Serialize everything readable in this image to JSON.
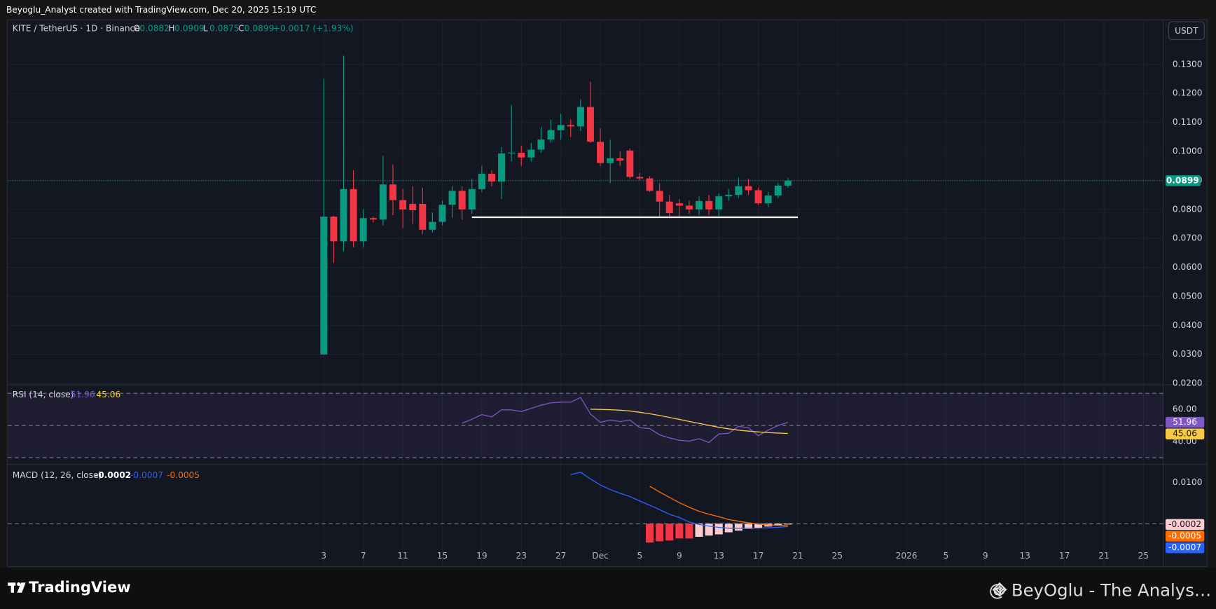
{
  "header": {
    "caption": "Beyoglu_Analyst created with TradingView.com, Dec 20, 2025 15:19 UTC"
  },
  "currency_button": "USDT",
  "footer": {
    "brand": "TradingView",
    "watermark": "@ BeyOglu - The Analys…"
  },
  "chart_data": [
    {
      "type": "candlestick",
      "title": "KITE / TetherUS · 1D · Binance",
      "ohlc_labels": [
        "O",
        "H",
        "L",
        "C"
      ],
      "change_label": "+0.0017 (+1.93%)",
      "up_color": "#089981",
      "down_color": "#f23645",
      "grid": true,
      "x": [
        "2025-11-03",
        "2025-11-04",
        "2025-11-05",
        "2025-11-06",
        "2025-11-07",
        "2025-11-08",
        "2025-11-09",
        "2025-11-10",
        "2025-11-11",
        "2025-11-12",
        "2025-11-13",
        "2025-11-14",
        "2025-11-15",
        "2025-11-16",
        "2025-11-17",
        "2025-11-18",
        "2025-11-19",
        "2025-11-20",
        "2025-11-21",
        "2025-11-22",
        "2025-11-23",
        "2025-11-24",
        "2025-11-25",
        "2025-11-26",
        "2025-11-27",
        "2025-11-28",
        "2025-11-29",
        "2025-11-30",
        "2025-12-01",
        "2025-12-02",
        "2025-12-03",
        "2025-12-04",
        "2025-12-05",
        "2025-12-06",
        "2025-12-07",
        "2025-12-08",
        "2025-12-09",
        "2025-12-10",
        "2025-12-11",
        "2025-12-12",
        "2025-12-13",
        "2025-12-14",
        "2025-12-15",
        "2025-12-16",
        "2025-12-17",
        "2025-12-18",
        "2025-12-19",
        "2025-12-20"
      ],
      "open": [
        0.03,
        0.0775,
        0.069,
        0.087,
        0.069,
        0.077,
        0.0765,
        0.0886,
        0.0832,
        0.0819,
        0.0819,
        0.073,
        0.0757,
        0.0816,
        0.0864,
        0.08,
        0.087,
        0.0923,
        0.0896,
        0.0993,
        0.0995,
        0.0979,
        0.1006,
        0.1041,
        0.1073,
        0.1091,
        0.1086,
        0.1153,
        0.1033,
        0.096,
        0.0976,
        0.1003,
        0.0912,
        0.0907,
        0.0864,
        0.0827,
        0.0821,
        0.0813,
        0.08,
        0.0829,
        0.08,
        0.0845,
        0.085,
        0.088,
        0.0866,
        0.0821,
        0.0848,
        0.0882
      ],
      "high": [
        0.125,
        0.0778,
        0.133,
        0.0935,
        0.08,
        0.0775,
        0.0985,
        0.0955,
        0.087,
        0.088,
        0.0875,
        0.079,
        0.083,
        0.088,
        0.088,
        0.0905,
        0.095,
        0.0935,
        0.1015,
        0.116,
        0.102,
        0.103,
        0.1085,
        0.111,
        0.113,
        0.111,
        0.118,
        0.124,
        0.108,
        0.104,
        0.1,
        0.101,
        0.0925,
        0.0915,
        0.089,
        0.085,
        0.0835,
        0.083,
        0.0845,
        0.085,
        0.0855,
        0.087,
        0.091,
        0.0905,
        0.0875,
        0.086,
        0.0892,
        0.0909
      ],
      "low": [
        0.03,
        0.0615,
        0.0655,
        0.067,
        0.067,
        0.0755,
        0.0745,
        0.078,
        0.0735,
        0.075,
        0.0715,
        0.072,
        0.0745,
        0.077,
        0.0765,
        0.0785,
        0.086,
        0.088,
        0.0835,
        0.0965,
        0.095,
        0.0965,
        0.0995,
        0.103,
        0.104,
        0.105,
        0.107,
        0.103,
        0.095,
        0.089,
        0.095,
        0.0905,
        0.09,
        0.086,
        0.0775,
        0.077,
        0.0775,
        0.0785,
        0.078,
        0.078,
        0.0778,
        0.083,
        0.084,
        0.085,
        0.0815,
        0.0808,
        0.0838,
        0.0875
      ],
      "close": [
        0.0775,
        0.069,
        0.087,
        0.069,
        0.077,
        0.0765,
        0.0886,
        0.0832,
        0.08,
        0.0797,
        0.073,
        0.0757,
        0.0816,
        0.0864,
        0.08,
        0.087,
        0.0923,
        0.0896,
        0.0993,
        0.0996,
        0.0979,
        0.1006,
        0.1041,
        0.1073,
        0.1091,
        0.1086,
        0.1153,
        0.1033,
        0.096,
        0.0976,
        0.0968,
        0.0912,
        0.0907,
        0.0864,
        0.0827,
        0.0787,
        0.0813,
        0.08,
        0.0829,
        0.08,
        0.0845,
        0.085,
        0.088,
        0.0866,
        0.0821,
        0.0848,
        0.0882,
        0.0899
      ],
      "xlim": [
        "2025-10-02",
        "2026-01-27"
      ],
      "xticks": [
        {
          "value": "2025-11-03",
          "label": "3"
        },
        {
          "value": "2025-11-07",
          "label": "7"
        },
        {
          "value": "2025-11-11",
          "label": "11"
        },
        {
          "value": "2025-11-15",
          "label": "15"
        },
        {
          "value": "2025-11-19",
          "label": "19"
        },
        {
          "value": "2025-11-23",
          "label": "23"
        },
        {
          "value": "2025-11-27",
          "label": "27"
        },
        {
          "value": "2025-12-01",
          "label": "Dec"
        },
        {
          "value": "2025-12-05",
          "label": "5"
        },
        {
          "value": "2025-12-09",
          "label": "9"
        },
        {
          "value": "2025-12-13",
          "label": "13"
        },
        {
          "value": "2025-12-17",
          "label": "17"
        },
        {
          "value": "2025-12-21",
          "label": "21"
        },
        {
          "value": "2025-12-25",
          "label": "25"
        },
        {
          "value": "2026-01-01",
          "label": "2026"
        },
        {
          "value": "2026-01-05",
          "label": "5"
        },
        {
          "value": "2026-01-09",
          "label": "9"
        },
        {
          "value": "2026-01-13",
          "label": "13"
        },
        {
          "value": "2026-01-17",
          "label": "17"
        },
        {
          "value": "2026-01-21",
          "label": "21"
        },
        {
          "value": "2026-01-25",
          "label": "25"
        }
      ],
      "ylim": [
        0.0198,
        0.1455
      ],
      "yticks": [
        {
          "value": 0.02,
          "label": "0.0200"
        },
        {
          "value": 0.03,
          "label": "0.0300"
        },
        {
          "value": 0.04,
          "label": "0.0400"
        },
        {
          "value": 0.05,
          "label": "0.0500"
        },
        {
          "value": 0.06,
          "label": "0.0600"
        },
        {
          "value": 0.07,
          "label": "0.0700"
        },
        {
          "value": 0.08,
          "label": "0.0800"
        },
        {
          "value": 0.09,
          "label": "0.0900"
        },
        {
          "value": 0.1,
          "label": "0.1000"
        },
        {
          "value": 0.11,
          "label": "0.1100"
        },
        {
          "value": 0.12,
          "label": "0.1200"
        },
        {
          "value": 0.13,
          "label": "0.1300"
        }
      ],
      "annotations": [
        {
          "type": "hline",
          "y": 0.0773,
          "x": [
            "2025-11-18",
            "2025-12-21"
          ],
          "color": "#ffffff"
        }
      ]
    },
    {
      "type": "line",
      "title": "RSI (14, close)",
      "ylim": [
        26.6,
        74.8
      ],
      "yticks": [
        {
          "value": 60,
          "label": "60.00"
        },
        {
          "value": 40,
          "label": "40.00"
        }
      ],
      "levels": [
        70,
        50,
        30
      ],
      "band_color": "#7e57c2",
      "series": [
        {
          "color": "#7e57c2",
          "values": [
            null,
            null,
            null,
            null,
            null,
            null,
            null,
            null,
            null,
            null,
            null,
            null,
            null,
            null,
            51.4,
            53.9,
            56.8,
            55.4,
            59.7,
            59.7,
            58.7,
            60.6,
            62.6,
            64.1,
            64.5,
            64.5,
            67.4,
            57.2,
            51.9,
            53.4,
            52.4,
            53.4,
            48.6,
            48.1,
            44.2,
            42.3,
            40.8,
            40.3,
            41.8,
            39.4,
            44.7,
            45.2,
            49.5,
            48.6,
            43.7,
            47.1,
            50.0,
            51.96
          ]
        },
        {
          "color": "#f7c948",
          "values": [
            null,
            null,
            null,
            null,
            null,
            null,
            null,
            null,
            null,
            null,
            null,
            null,
            null,
            null,
            null,
            null,
            null,
            null,
            null,
            null,
            null,
            null,
            null,
            null,
            null,
            null,
            null,
            60.1,
            60.0,
            59.8,
            59.5,
            59.0,
            58.2,
            57.3,
            56.2,
            55.0,
            53.8,
            52.5,
            51.3,
            50.1,
            48.9,
            47.9,
            47.1,
            46.5,
            46.0,
            45.6,
            45.3,
            45.06
          ]
        }
      ]
    },
    {
      "type": "macd",
      "title": "MACD (12, 26, close)",
      "ylim": [
        -0.00566,
        0.01415
      ],
      "yticks": [
        {
          "value": 0.01,
          "label": "0.0100"
        }
      ],
      "levels": [
        0
      ],
      "histogram": {
        "values": [
          null,
          null,
          null,
          null,
          null,
          null,
          null,
          null,
          null,
          null,
          null,
          null,
          null,
          null,
          null,
          null,
          null,
          null,
          null,
          null,
          null,
          null,
          null,
          null,
          null,
          null,
          null,
          null,
          null,
          null,
          null,
          null,
          null,
          -0.0046,
          -0.0043,
          -0.0041,
          -0.0036,
          -0.0036,
          -0.0032,
          -0.0029,
          -0.0026,
          -0.0021,
          -0.0017,
          -0.0013,
          -0.001,
          -0.0007,
          -0.0005,
          -0.0002
        ],
        "colors": [
          null,
          null,
          null,
          null,
          null,
          null,
          null,
          null,
          null,
          null,
          null,
          null,
          null,
          null,
          null,
          null,
          null,
          null,
          null,
          null,
          null,
          null,
          null,
          null,
          null,
          null,
          null,
          null,
          null,
          null,
          null,
          null,
          null,
          "#f23645",
          "#f23645",
          "#f23645",
          "#f23645",
          "#f23645",
          "#fccbcd",
          "#fccbcd",
          "#fccbcd",
          "#fccbcd",
          "#fccbcd",
          "#fccbcd",
          "#fccbcd",
          "#fccbcd",
          "#fccbcd",
          "#fccbcd"
        ]
      },
      "series": [
        {
          "color": "#2962ff",
          "values": [
            null,
            null,
            null,
            null,
            null,
            null,
            null,
            null,
            null,
            null,
            null,
            null,
            null,
            null,
            null,
            null,
            null,
            null,
            null,
            null,
            null,
            null,
            null,
            null,
            null,
            0.0119,
            0.0125,
            0.0109,
            0.0094,
            0.0083,
            0.0074,
            0.0066,
            0.0055,
            0.0045,
            0.0034,
            0.0023,
            0.0015,
            0.0004,
            -0.0002,
            -0.0006,
            -0.0009,
            -0.0011,
            -0.0011,
            -0.0011,
            -0.0011,
            -0.001,
            -0.0009,
            -0.0007
          ]
        },
        {
          "color": "#ff6d00",
          "values": [
            null,
            null,
            null,
            null,
            null,
            null,
            null,
            null,
            null,
            null,
            null,
            null,
            null,
            null,
            null,
            null,
            null,
            null,
            null,
            null,
            null,
            null,
            null,
            null,
            null,
            null,
            null,
            null,
            null,
            null,
            null,
            null,
            null,
            0.0091,
            0.0077,
            0.0064,
            0.0051,
            0.004,
            0.003,
            0.0023,
            0.0017,
            0.001,
            0.0006,
            0.0002,
            -0.0001,
            -0.0003,
            -0.0004,
            -0.0005
          ]
        }
      ]
    }
  ]
}
